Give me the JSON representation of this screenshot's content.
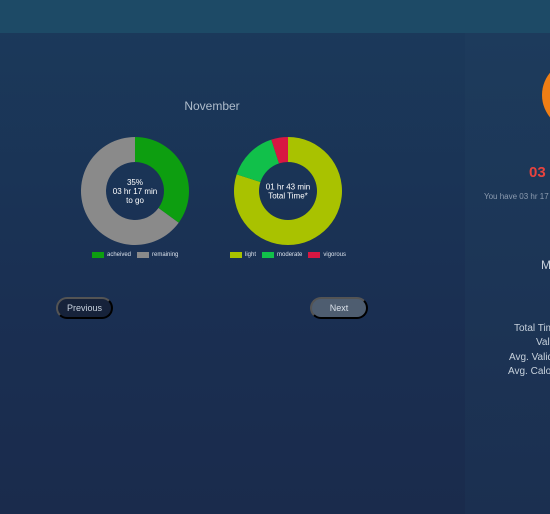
{
  "header": {},
  "month": "November",
  "chart_data": [
    {
      "type": "pie",
      "variant": "donut",
      "slices": [
        {
          "label": "acheived",
          "value": 35,
          "color": "#0d9e10"
        },
        {
          "label": "remaining",
          "value": 65,
          "color": "#8a8a8a"
        }
      ],
      "center_text": [
        "35%",
        "03 hr 17 min",
        "to go"
      ]
    },
    {
      "type": "pie",
      "variant": "donut",
      "slices": [
        {
          "label": "light",
          "value": 80,
          "color": "#a9c200"
        },
        {
          "label": "moderate",
          "value": 15,
          "color": "#11c04a"
        },
        {
          "label": "vigorous",
          "value": 5,
          "color": "#d81742"
        }
      ],
      "center_text": [
        "01 hr 43 min",
        "Total Time*"
      ]
    }
  ],
  "nav": {
    "previous_label": "Previous",
    "next_label": "Next"
  },
  "summary": {
    "time_remaining": "03",
    "time_remaining_color": "#e8433e",
    "note": "You have 03 hr 17",
    "heading": "M",
    "progress_circle_color": "#f07e14",
    "stats": [
      "Total Tim",
      "Val",
      "Avg. Valid",
      "Avg. Calo"
    ]
  }
}
